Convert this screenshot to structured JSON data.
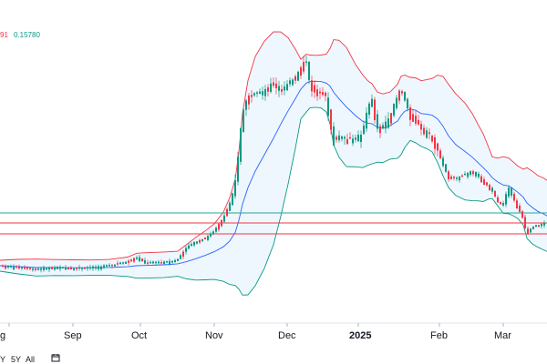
{
  "legend": {
    "lower_band_fragment": "91",
    "lower_band_value": "0.15780",
    "upper_color": "#f23645",
    "lower_color": "#089981"
  },
  "time_axis": {
    "labels": [
      {
        "text": "g",
        "bold": false
      },
      {
        "text": "Sep",
        "bold": false
      },
      {
        "text": "Oct",
        "bold": false
      },
      {
        "text": "Nov",
        "bold": false
      },
      {
        "text": "Dec",
        "bold": false
      },
      {
        "text": "2025",
        "bold": true
      },
      {
        "text": "Feb",
        "bold": false
      },
      {
        "text": "Mar",
        "bold": false
      }
    ]
  },
  "range_buttons": [
    "Y",
    "5Y",
    "All"
  ],
  "colors": {
    "up": "#089981",
    "down": "#f23645",
    "basis": "#2962ff",
    "band_fill": "#2196f3",
    "hline_red": "#f23645",
    "hline_teal": "#26a69a"
  },
  "chart_data": {
    "type": "candlestick",
    "indicator": "Bollinger Bands",
    "xlabels": [
      "Aug",
      "Sep",
      "Oct",
      "Nov",
      "Dec",
      "2025",
      "Feb",
      "Mar"
    ],
    "series_summary": {
      "aug_to_oct_range": "flat, low",
      "nov_rally": "sharp rise",
      "dec_peak": "highest",
      "jan_secondary_peak": "lower high",
      "feb_mar": "decline"
    },
    "grid": false
  }
}
